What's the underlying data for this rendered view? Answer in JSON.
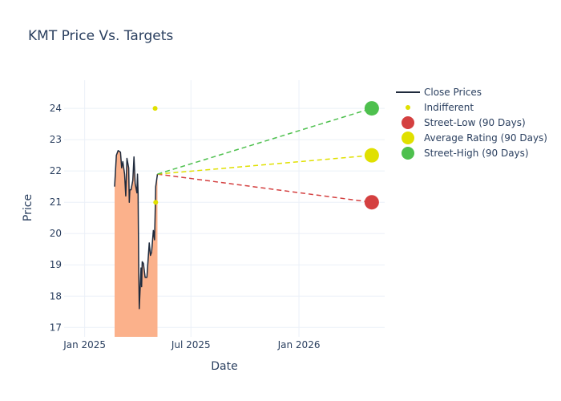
{
  "chart_data": {
    "type": "line",
    "title": "KMT Price Vs. Targets",
    "xlabel": "Date",
    "ylabel": "Price",
    "xlim": [
      "2024-11-27",
      "2026-05-27"
    ],
    "ylim": [
      16.7,
      24.9
    ],
    "x_ticks": [
      {
        "date": "2025-01-01",
        "label": "Jan 2025"
      },
      {
        "date": "2025-07-01",
        "label": "Jul 2025"
      },
      {
        "date": "2026-01-01",
        "label": "Jan 2026"
      }
    ],
    "y_ticks": [
      17,
      18,
      19,
      20,
      21,
      22,
      23,
      24
    ],
    "grid": true,
    "legend_position": "top-right",
    "series": [
      {
        "name": "Close Prices",
        "kind": "line-area",
        "color": "#1f2a3c",
        "fill_color": "#fbb18b",
        "points": [
          [
            "2025-02-21",
            21.5
          ],
          [
            "2025-02-24",
            22.5
          ],
          [
            "2025-02-27",
            22.65
          ],
          [
            "2025-03-03",
            22.6
          ],
          [
            "2025-03-05",
            22.1
          ],
          [
            "2025-03-07",
            22.3
          ],
          [
            "2025-03-10",
            21.9
          ],
          [
            "2025-03-12",
            21.2
          ],
          [
            "2025-03-14",
            22.4
          ],
          [
            "2025-03-17",
            22.1
          ],
          [
            "2025-03-18",
            21.0
          ],
          [
            "2025-03-19",
            21.4
          ],
          [
            "2025-03-21",
            21.4
          ],
          [
            "2025-03-24",
            21.7
          ],
          [
            "2025-03-26",
            22.45
          ],
          [
            "2025-03-28",
            21.6
          ],
          [
            "2025-03-31",
            21.3
          ],
          [
            "2025-04-01",
            21.9
          ],
          [
            "2025-04-02",
            21.3
          ],
          [
            "2025-04-03",
            19.0
          ],
          [
            "2025-04-04",
            17.6
          ],
          [
            "2025-04-07",
            18.9
          ],
          [
            "2025-04-08",
            18.3
          ],
          [
            "2025-04-09",
            19.1
          ],
          [
            "2025-04-11",
            19.05
          ],
          [
            "2025-04-14",
            18.6
          ],
          [
            "2025-04-17",
            18.6
          ],
          [
            "2025-04-21",
            19.7
          ],
          [
            "2025-04-23",
            19.3
          ],
          [
            "2025-04-25",
            19.4
          ],
          [
            "2025-04-28",
            20.1
          ],
          [
            "2025-04-30",
            19.8
          ],
          [
            "2025-05-01",
            20.6
          ],
          [
            "2025-05-02",
            21.5
          ],
          [
            "2025-05-05",
            21.9
          ]
        ]
      },
      {
        "name": "Indifferent",
        "kind": "markers",
        "color": "#e0e000",
        "points": [
          [
            "2025-05-01",
            24.0
          ],
          [
            "2025-05-02",
            21.0
          ]
        ]
      },
      {
        "name": "Street-Low (90 Days)",
        "kind": "target",
        "color": "#d44040",
        "start": [
          "2025-05-05",
          21.9
        ],
        "end": [
          "2026-05-05",
          21.0
        ]
      },
      {
        "name": "Average Rating (90 Days)",
        "kind": "target",
        "color": "#e0e000",
        "start": [
          "2025-05-05",
          21.9
        ],
        "end": [
          "2026-05-05",
          22.5
        ]
      },
      {
        "name": "Street-High (90 Days)",
        "kind": "target",
        "color": "#4ec04e",
        "start": [
          "2025-05-05",
          21.9
        ],
        "end": [
          "2026-05-05",
          24.0
        ]
      }
    ]
  }
}
